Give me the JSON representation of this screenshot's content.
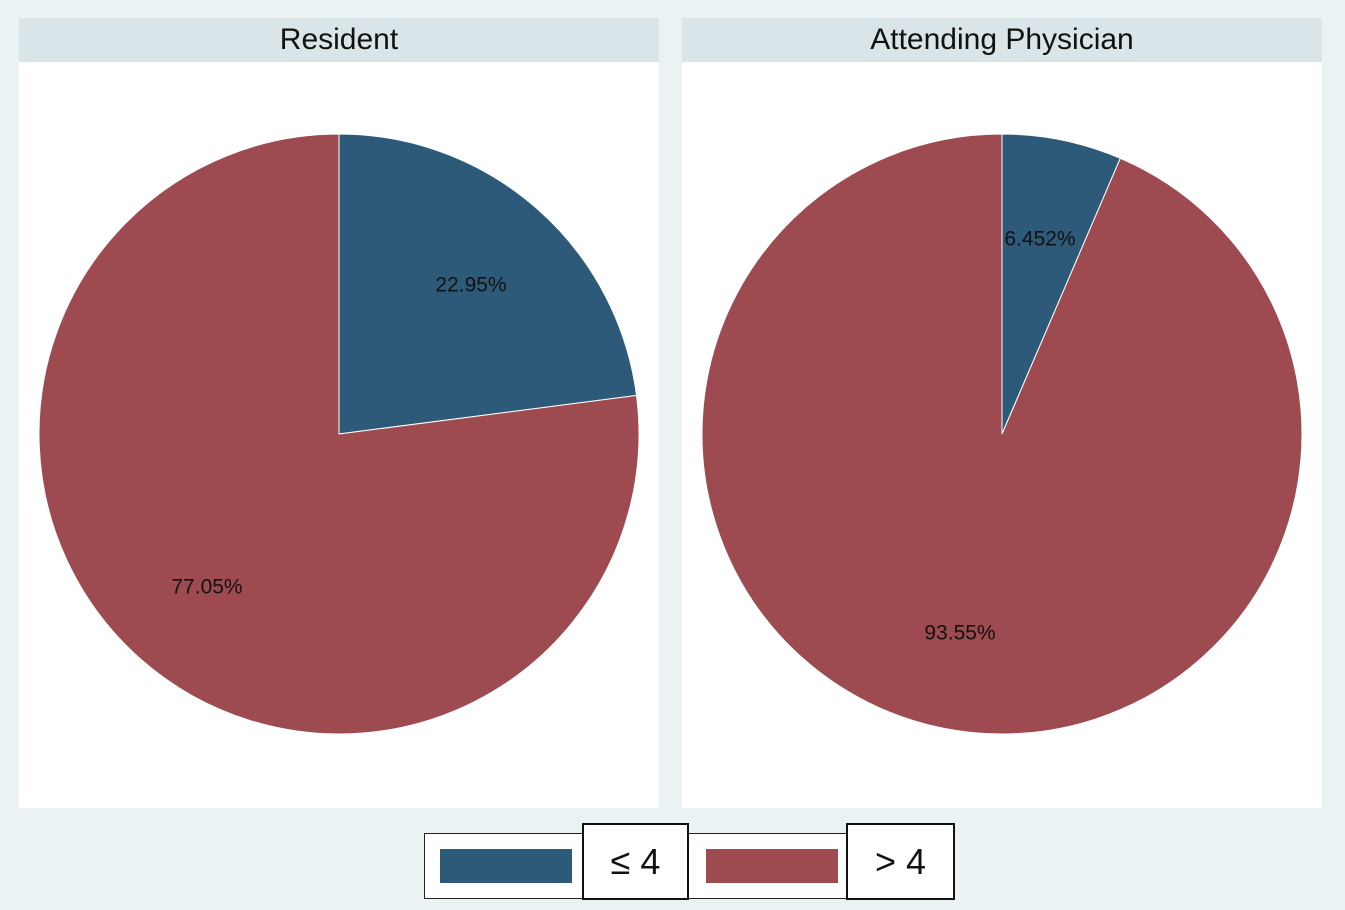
{
  "chart_data": [
    {
      "type": "pie",
      "title": "Resident",
      "categories": [
        "≤ 4",
        "> 4"
      ],
      "values": [
        22.95,
        77.05
      ],
      "labels": [
        "22.95%",
        "77.05%"
      ],
      "colors": [
        "#2e5a7a",
        "#9d4a50"
      ]
    },
    {
      "type": "pie",
      "title": "Attending Physician",
      "categories": [
        "≤ 4",
        "> 4"
      ],
      "values": [
        6.452,
        93.55
      ],
      "labels": [
        "6.452%",
        "93.55%"
      ],
      "colors": [
        "#2e5a7a",
        "#9d4a50"
      ]
    }
  ],
  "legend": {
    "position": "bottom",
    "items": [
      {
        "label": "≤ 4",
        "color": "#2e5a7a"
      },
      {
        "label": "> 4",
        "color": "#9d4a50"
      }
    ]
  }
}
